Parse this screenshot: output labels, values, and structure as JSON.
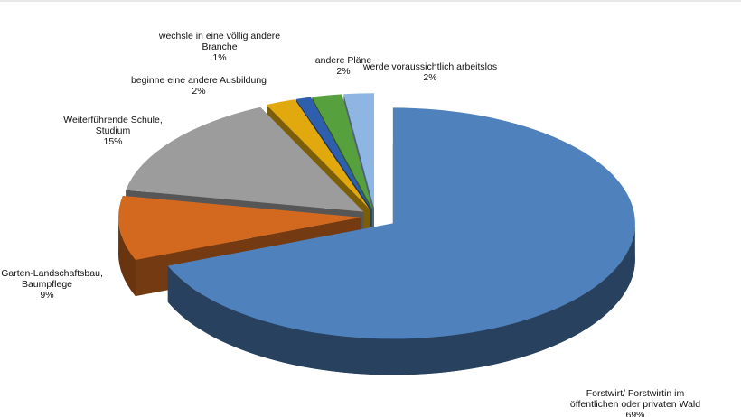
{
  "chart_data": {
    "type": "pie",
    "categories": [
      [
        "Forstwirt/ Forstwirtin im",
        "öffentlichen oder privaten Wald"
      ],
      [
        "le Garten-Landschaftsbau,",
        "Baumpflege"
      ],
      [
        "Weiterführende Schule,",
        "Studium"
      ],
      [
        "beginne eine andere Ausbildung"
      ],
      [
        "wechsle in eine völlig andere",
        "Branche"
      ],
      [
        "andere Pläne"
      ],
      [
        "werde voraussichtlich arbeitslos"
      ]
    ],
    "values": [
      69,
      9,
      15,
      2,
      1,
      2,
      2
    ],
    "value_labels": [
      "69%",
      "9%",
      "15%",
      "2%",
      "1%",
      "2%",
      "2%"
    ],
    "colors": [
      "#4f81bd",
      "#d2691f",
      "#9c9c9c",
      "#e2a90e",
      "#2e5fae",
      "#56a03d",
      "#8fb5e2"
    ]
  }
}
